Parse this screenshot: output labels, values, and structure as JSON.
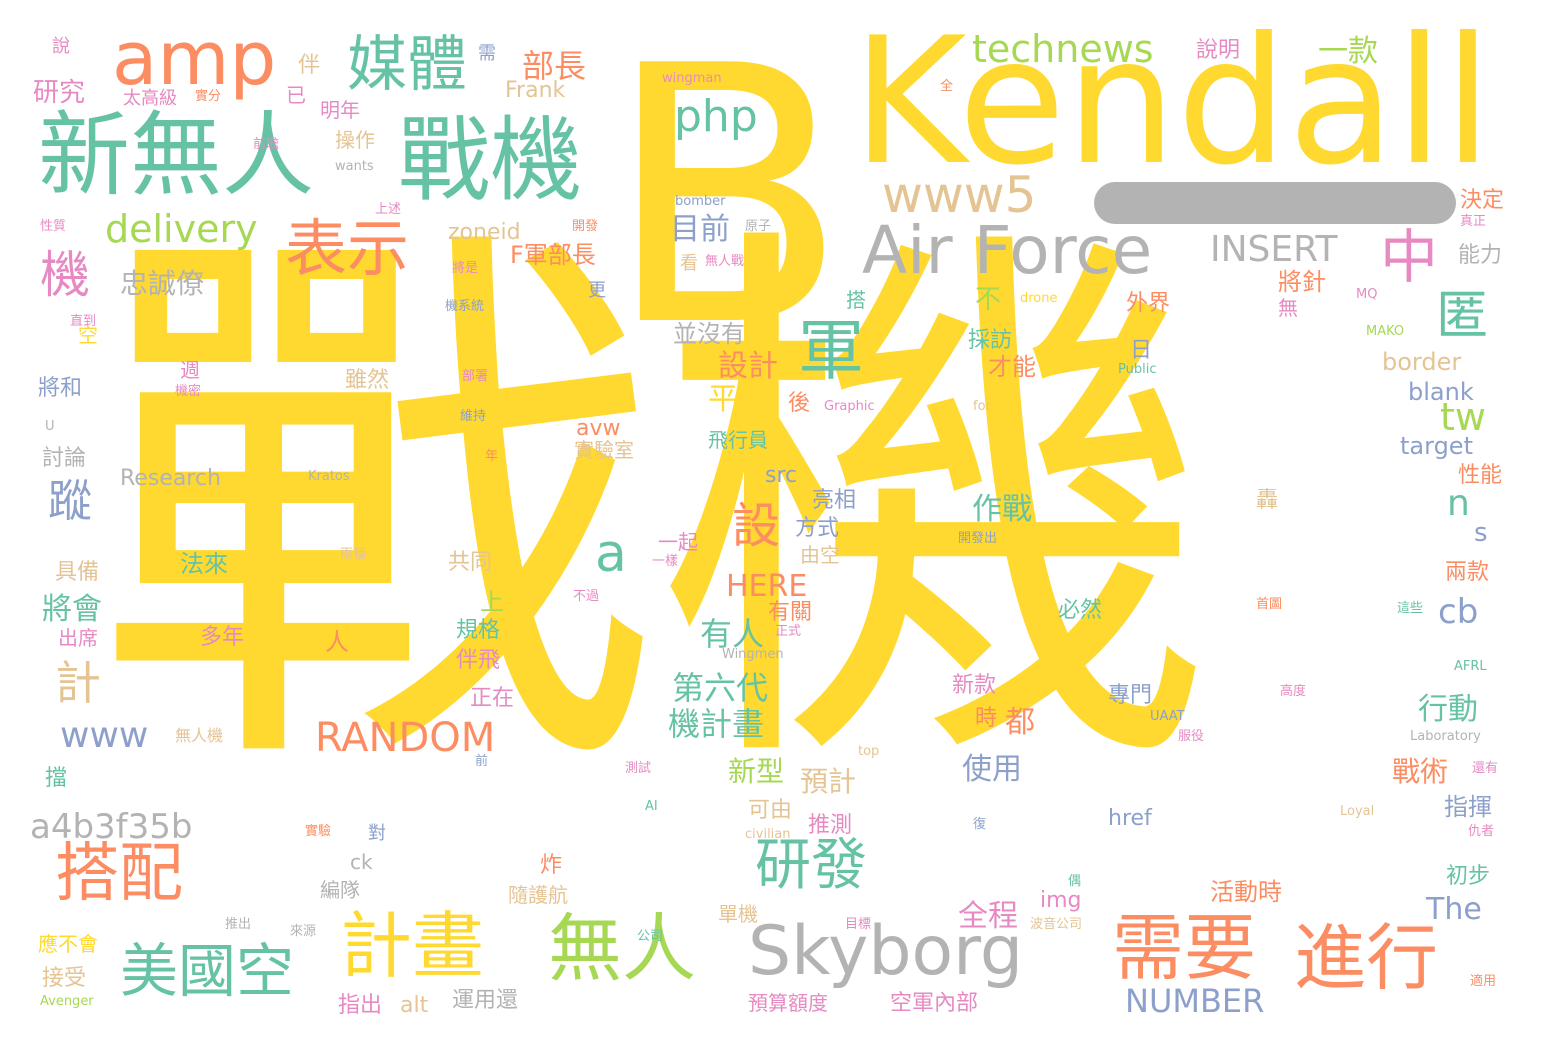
{
  "words": [
    {
      "text": "戰機",
      "color": "#ffd92f"
    },
    {
      "text": "B",
      "color": "#ffd92f"
    },
    {
      "text": "Kendall",
      "color": "#ffd92f"
    },
    {
      "text": "新無人",
      "color": "#66c2a5"
    },
    {
      "text": "戰機",
      "color": "#66c2a5"
    },
    {
      "text": "Air Force",
      "color": "#b3b3b3"
    },
    {
      "text": "Skyborg",
      "color": "#b3b3b3"
    },
    {
      "text": "需要",
      "color": "#fc8d62"
    },
    {
      "text": "進行",
      "color": "#fc8d62"
    },
    {
      "text": "無人",
      "color": "#a6d854"
    },
    {
      "text": "計畫",
      "color": "#ffd92f"
    },
    {
      "text": "美國空",
      "color": "#66c2a5"
    },
    {
      "text": "搭配",
      "color": "#fc8d62"
    },
    {
      "text": "研發",
      "color": "#66c2a5"
    },
    {
      "text": "amp",
      "color": "#fc8d62"
    },
    {
      "text": "媒體",
      "color": "#66c2a5"
    },
    {
      "text": "表示",
      "color": "#fc8d62"
    },
    {
      "text": "軍",
      "color": "#66c2a5"
    },
    {
      "text": "中",
      "color": "#e78ac3"
    },
    {
      "text": "www5",
      "color": "#e5c494"
    },
    {
      "text": "technews",
      "color": "#a6d854"
    },
    {
      "text": "php",
      "color": "#66c2a5"
    },
    {
      "text": "delivery",
      "color": "#a6d854"
    },
    {
      "text": "INSERT",
      "color": "#b3b3b3"
    },
    {
      "text": "匿",
      "color": "#66c2a5"
    },
    {
      "text": "機",
      "color": "#e78ac3"
    },
    {
      "text": "蹤",
      "color": "#8da0cb"
    },
    {
      "text": "a",
      "color": "#66c2a5"
    },
    {
      "text": "設",
      "color": "#fc8d62"
    },
    {
      "text": "a4b3f35b",
      "color": "#b3b3b3"
    },
    {
      "text": "RANDOM",
      "color": "#fc8d62"
    },
    {
      "text": "NUMBER",
      "color": "#8da0cb"
    },
    {
      "text": "www",
      "color": "#8da0cb"
    },
    {
      "text": "忠誠僚",
      "color": "#b3b3b3"
    },
    {
      "text": "HERE",
      "color": "#fc8d62"
    },
    {
      "text": "部長",
      "color": "#fc8d62"
    },
    {
      "text": "一款",
      "color": "#a6d854"
    },
    {
      "text": "說明",
      "color": "#e78ac3"
    },
    {
      "text": "研究",
      "color": "#e78ac3"
    },
    {
      "text": "Frank",
      "color": "#e5c494"
    },
    {
      "text": "目前",
      "color": "#8da0cb"
    },
    {
      "text": "zoneid",
      "color": "#e5c494"
    },
    {
      "text": "F軍部長",
      "color": "#fc8d62"
    },
    {
      "text": "將針",
      "color": "#fc8d62"
    },
    {
      "text": "能力",
      "color": "#b3b3b3"
    },
    {
      "text": "決定",
      "color": "#fc8d62"
    },
    {
      "text": "tw",
      "color": "#a6d854"
    },
    {
      "text": "n",
      "color": "#66c2a5"
    },
    {
      "text": "s",
      "color": "#8da0cb"
    },
    {
      "text": "cb",
      "color": "#8da0cb"
    },
    {
      "text": "平台",
      "color": "#ffd92f"
    },
    {
      "text": "設計",
      "color": "#fc8d62"
    },
    {
      "text": "並沒有",
      "color": "#b3b3b3"
    },
    {
      "text": "第六代",
      "color": "#66c2a5"
    },
    {
      "text": "機計畫",
      "color": "#66c2a5"
    },
    {
      "text": "有人",
      "color": "#66c2a5"
    },
    {
      "text": "新型",
      "color": "#a6d854"
    },
    {
      "text": "預計",
      "color": "#e5c494"
    },
    {
      "text": "作戰",
      "color": "#66c2a5"
    },
    {
      "text": "使用",
      "color": "#8da0cb"
    },
    {
      "text": "行動",
      "color": "#66c2a5"
    },
    {
      "text": "戰術",
      "color": "#fc8d62"
    },
    {
      "text": "指揮",
      "color": "#8da0cb"
    },
    {
      "text": "全程",
      "color": "#e78ac3"
    },
    {
      "text": "活動時",
      "color": "#fc8d62"
    },
    {
      "text": "The",
      "color": "#8da0cb"
    },
    {
      "text": "將會",
      "color": "#66c2a5"
    },
    {
      "text": "計",
      "color": "#e5c494"
    },
    {
      "text": "外界",
      "color": "#fc8d62"
    },
    {
      "text": "採訪",
      "color": "#66c2a5"
    },
    {
      "text": "border",
      "color": "#e5c494"
    },
    {
      "text": "blank",
      "color": "#8da0cb"
    },
    {
      "text": "target",
      "color": "#8da0cb"
    },
    {
      "text": "性能",
      "color": "#fc8d62"
    },
    {
      "text": "雖然",
      "color": "#e5c494"
    },
    {
      "text": "將和",
      "color": "#8da0cb"
    },
    {
      "text": "操作",
      "color": "#e5c494"
    },
    {
      "text": "明年",
      "color": "#e78ac3"
    },
    {
      "text": "太高級",
      "color": "#e78ac3"
    },
    {
      "text": "Research",
      "color": "#b3b3b3"
    },
    {
      "text": "avw",
      "color": "#fc8d62"
    },
    {
      "text": "實驗室",
      "color": "#e5c494"
    },
    {
      "text": "飛行員",
      "color": "#66c2a5"
    },
    {
      "text": "src",
      "color": "#8da0cb"
    },
    {
      "text": "亮相",
      "color": "#8da0cb"
    },
    {
      "text": "方式",
      "color": "#8da0cb"
    },
    {
      "text": "由空",
      "color": "#e5c494"
    },
    {
      "text": "一起",
      "color": "#e78ac3"
    },
    {
      "text": "共同",
      "color": "#e5c494"
    },
    {
      "text": "法來",
      "color": "#66c2a5"
    },
    {
      "text": "具備",
      "color": "#e5c494"
    },
    {
      "text": "出席",
      "color": "#e78ac3"
    },
    {
      "text": "多年",
      "color": "#e78ac3"
    },
    {
      "text": "規格",
      "color": "#66c2a5"
    },
    {
      "text": "伴飛",
      "color": "#e78ac3"
    },
    {
      "text": "正在",
      "color": "#e78ac3"
    },
    {
      "text": "有關",
      "color": "#fc8d62"
    },
    {
      "text": "可由",
      "color": "#e5c494"
    },
    {
      "text": "推測",
      "color": "#e78ac3"
    },
    {
      "text": "必然",
      "color": "#66c2a5"
    },
    {
      "text": "新款",
      "color": "#e78ac3"
    },
    {
      "text": "時",
      "color": "#fc8d62"
    },
    {
      "text": "都",
      "color": "#fc8d62"
    },
    {
      "text": "專門",
      "color": "#8da0cb"
    },
    {
      "text": "href",
      "color": "#8da0cb"
    },
    {
      "text": "img",
      "color": "#e78ac3"
    },
    {
      "text": "ck",
      "color": "#b3b3b3"
    },
    {
      "text": "編隊",
      "color": "#b3b3b3"
    },
    {
      "text": "炸",
      "color": "#fc8d62"
    },
    {
      "text": "隨護航",
      "color": "#e5c494"
    },
    {
      "text": "單機",
      "color": "#e5c494"
    },
    {
      "text": "指出",
      "color": "#e78ac3"
    },
    {
      "text": "alt",
      "color": "#e5c494"
    },
    {
      "text": "運用還",
      "color": "#b3b3b3"
    },
    {
      "text": "預算額度",
      "color": "#e78ac3"
    },
    {
      "text": "空軍內部",
      "color": "#e78ac3"
    },
    {
      "text": "接受",
      "color": "#e5c494"
    },
    {
      "text": "應不會",
      "color": "#ffd92f"
    },
    {
      "text": "擋",
      "color": "#66c2a5"
    },
    {
      "text": "初步",
      "color": "#66c2a5"
    },
    {
      "text": "兩款",
      "color": "#fc8d62"
    },
    {
      "text": "討論",
      "color": "#b3b3b3"
    },
    {
      "text": "才能",
      "color": "#fc8d62"
    },
    {
      "text": "不",
      "color": "#a6d854"
    },
    {
      "text": "日",
      "color": "#8da0cb"
    },
    {
      "text": "後",
      "color": "#fc8d62"
    },
    {
      "text": "上",
      "color": "#a6d854"
    },
    {
      "text": "人",
      "color": "#fc8d62"
    },
    {
      "text": "說",
      "color": "#e78ac3"
    },
    {
      "text": "伴",
      "color": "#e5c494"
    },
    {
      "text": "已",
      "color": "#e78ac3"
    },
    {
      "text": "需",
      "color": "#8da0cb"
    },
    {
      "text": "空",
      "color": "#ffd92f"
    },
    {
      "text": "看",
      "color": "#e5c494"
    },
    {
      "text": "更",
      "color": "#8da0cb"
    },
    {
      "text": "搭",
      "color": "#66c2a5"
    },
    {
      "text": "無",
      "color": "#e78ac3"
    },
    {
      "text": "轟",
      "color": "#e5c494"
    },
    {
      "text": "對",
      "color": "#8da0cb"
    },
    {
      "text": "週",
      "color": "#e78ac3"
    },
    {
      "text": "wingman",
      "color": "#e78ac3"
    },
    {
      "text": "全",
      "color": "#fc8d62"
    },
    {
      "text": "實分",
      "color": "#fc8d62"
    },
    {
      "text": "前瞻",
      "color": "#e78ac3"
    },
    {
      "text": "wants",
      "color": "#b3b3b3"
    },
    {
      "text": "性質",
      "color": "#e78ac3"
    },
    {
      "text": "上述",
      "color": "#e78ac3"
    },
    {
      "text": "開發",
      "color": "#fc8d62"
    },
    {
      "text": "bomber",
      "color": "#8da0cb"
    },
    {
      "text": "原子",
      "color": "#b3b3b3"
    },
    {
      "text": "無人戰",
      "color": "#e78ac3"
    },
    {
      "text": "將是",
      "color": "#e78ac3"
    },
    {
      "text": "機系統",
      "color": "#8da0cb"
    },
    {
      "text": "直到",
      "color": "#e78ac3"
    },
    {
      "text": "機密",
      "color": "#e78ac3"
    },
    {
      "text": "部署",
      "color": "#e78ac3"
    },
    {
      "text": "維持",
      "color": "#8da0cb"
    },
    {
      "text": "年",
      "color": "#fc8d62"
    },
    {
      "text": "U",
      "color": "#b3b3b3"
    },
    {
      "text": "Kratos",
      "color": "#b3b3b3"
    },
    {
      "text": "兩種",
      "color": "#e5c494"
    },
    {
      "text": "開發出",
      "color": "#8da0cb"
    },
    {
      "text": "一樣",
      "color": "#e78ac3"
    },
    {
      "text": "不過",
      "color": "#e78ac3"
    },
    {
      "text": "正式",
      "color": "#e78ac3"
    },
    {
      "text": "Wingmen",
      "color": "#b3b3b3"
    },
    {
      "text": "無人機",
      "color": "#e5c494"
    },
    {
      "text": "前",
      "color": "#8da0cb"
    },
    {
      "text": "測試",
      "color": "#e78ac3"
    },
    {
      "text": "AI",
      "color": "#66c2a5"
    },
    {
      "text": "實驗",
      "color": "#fc8d62"
    },
    {
      "text": "civilian",
      "color": "#e5c494"
    },
    {
      "text": "推出",
      "color": "#b3b3b3"
    },
    {
      "text": "來源",
      "color": "#b3b3b3"
    },
    {
      "text": "公司",
      "color": "#66c2a5"
    },
    {
      "text": "目標",
      "color": "#e78ac3"
    },
    {
      "text": "波音公司",
      "color": "#e5c494"
    },
    {
      "text": "偶",
      "color": "#66c2a5"
    },
    {
      "text": "復",
      "color": "#8da0cb"
    },
    {
      "text": "Avenger",
      "color": "#a6d854"
    },
    {
      "text": "Graphic",
      "color": "#e78ac3"
    },
    {
      "text": "for",
      "color": "#e5c494"
    },
    {
      "text": "Public",
      "color": "#66c2a5"
    },
    {
      "text": "drone",
      "color": "#ffd92f"
    },
    {
      "text": "MQ",
      "color": "#e78ac3"
    },
    {
      "text": "MAKO",
      "color": "#a6d854"
    },
    {
      "text": "真正",
      "color": "#e78ac3"
    },
    {
      "text": "首圖",
      "color": "#fc8d62"
    },
    {
      "text": "這些",
      "color": "#66c2a5"
    },
    {
      "text": "AFRL",
      "color": "#66c2a5"
    },
    {
      "text": "高度",
      "color": "#e78ac3"
    },
    {
      "text": "UAAT",
      "color": "#8da0cb"
    },
    {
      "text": "服役",
      "color": "#e78ac3"
    },
    {
      "text": "top",
      "color": "#e5c494"
    },
    {
      "text": "Laboratory",
      "color": "#b3b3b3"
    },
    {
      "text": "還有",
      "color": "#e78ac3"
    },
    {
      "text": "Loyal",
      "color": "#e5c494"
    },
    {
      "text": "仇者",
      "color": "#e78ac3"
    },
    {
      "text": "適用",
      "color": "#fc8d62"
    }
  ]
}
